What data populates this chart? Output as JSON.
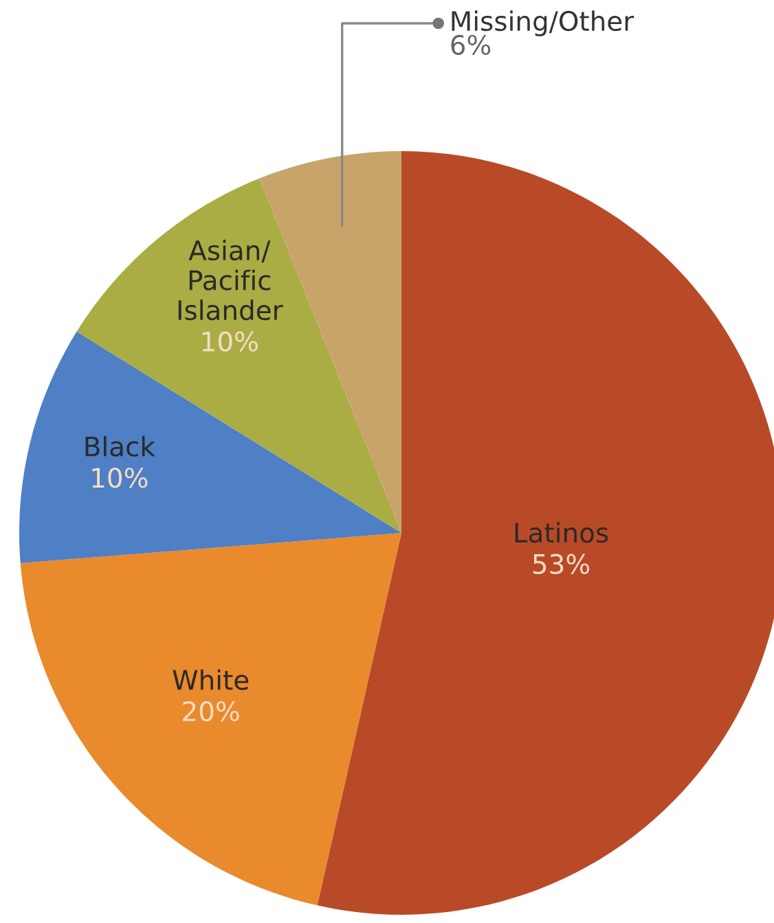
{
  "chart_data": {
    "type": "pie",
    "categories": [
      "Latinos",
      "White",
      "Black",
      "Asian/\nPacific\nIslander",
      "Missing/Other"
    ],
    "values": [
      53,
      20,
      10,
      10,
      6
    ],
    "colors": [
      "#b94a28",
      "#e98a2c",
      "#4f7fc4",
      "#a9ad44",
      "#c9a46a"
    ],
    "value_labels": [
      "53%",
      "20%",
      "10%",
      "10%",
      "6%"
    ]
  }
}
